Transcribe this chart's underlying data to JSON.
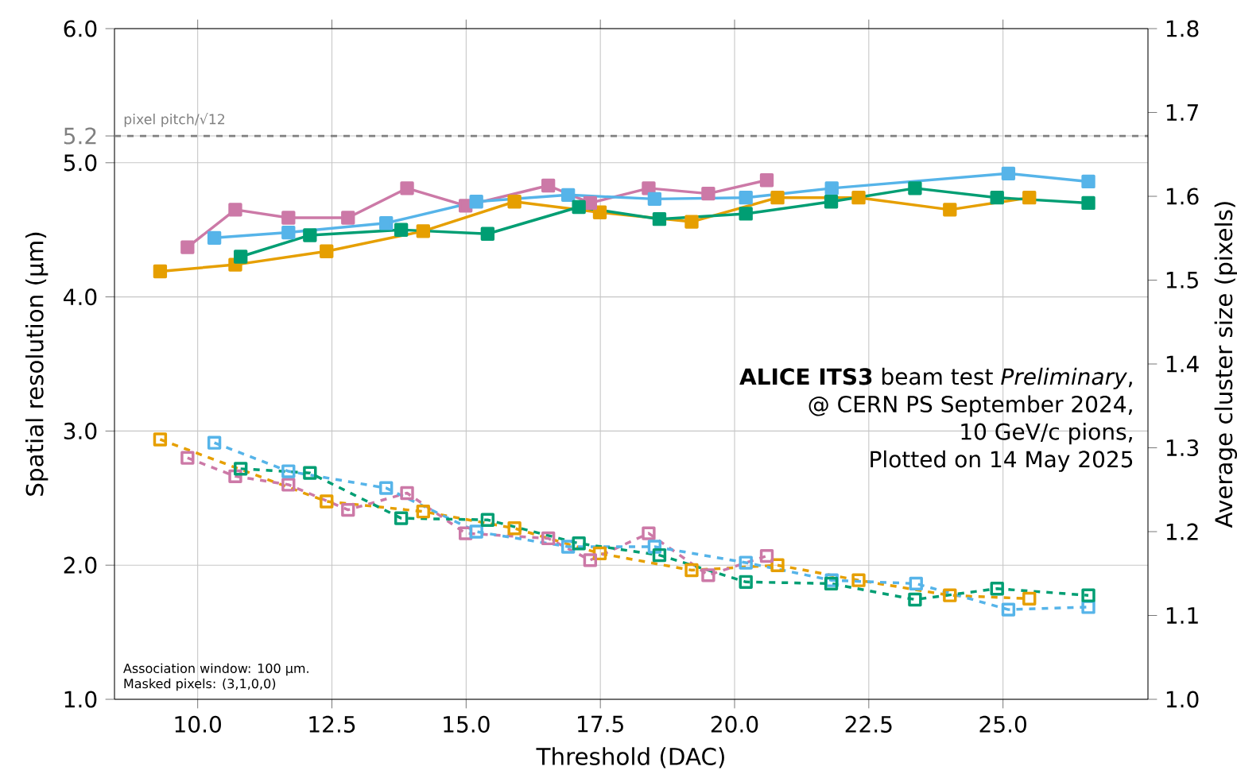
{
  "chart_data": {
    "type": "line",
    "xlabel": "Threshold (DAC)",
    "ylabel": "Spatial resolution (µm)",
    "y2label": "Average cluster size (pixels)",
    "xlim": [
      8.45,
      27.7
    ],
    "ylim": [
      1.0,
      6.0
    ],
    "y2lim": [
      1.0,
      1.8
    ],
    "xticks": [
      {
        "value": 10,
        "label": "10.0"
      },
      {
        "value": 12.5,
        "label": "12.5"
      },
      {
        "value": 15,
        "label": "15.0"
      },
      {
        "value": 17.5,
        "label": "17.5"
      },
      {
        "value": 20,
        "label": "20.0"
      },
      {
        "value": 22.5,
        "label": "22.5"
      },
      {
        "value": 25,
        "label": "25.0"
      }
    ],
    "yticks": [
      {
        "value": 1,
        "label": "1.0"
      },
      {
        "value": 2,
        "label": "2.0"
      },
      {
        "value": 3,
        "label": "3.0"
      },
      {
        "value": 4,
        "label": "4.0"
      },
      {
        "value": 5,
        "label": "5.0"
      },
      {
        "value": 5.2,
        "label": "5.2"
      },
      {
        "value": 6,
        "label": "6.0"
      }
    ],
    "y2ticks": [
      {
        "value": 1.0,
        "label": "1.0"
      },
      {
        "value": 1.1,
        "label": "1.1"
      },
      {
        "value": 1.2,
        "label": "1.2"
      },
      {
        "value": 1.3,
        "label": "1.3"
      },
      {
        "value": 1.4,
        "label": "1.4"
      },
      {
        "value": 1.5,
        "label": "1.5"
      },
      {
        "value": 1.6,
        "label": "1.6"
      },
      {
        "value": 1.7,
        "label": "1.7"
      },
      {
        "value": 1.8,
        "label": "1.8"
      }
    ],
    "grid": true,
    "marker": "square",
    "ref_lines": [
      {
        "axis": "y",
        "value": 5.2,
        "label": "pixel pitch/√12",
        "color": "#808080",
        "line_style": "dashed"
      }
    ],
    "annotations": [
      "**ALICE ITS3** beam test *Preliminary*,",
      "@ CERN PS September 2024,",
      "10 GeV/c pions,",
      "Plotted on 14 May 2025",
      "Association window: 100 µm.",
      "Masked pixels: (3,1,0,0)"
    ],
    "series": [
      {
        "color": "#E69F00",
        "line_style": "solid",
        "x": [
          9.3,
          10.7,
          12.4,
          14.2,
          15.9,
          17.49,
          19.2,
          20.8,
          22.31,
          24.01,
          25.49
        ],
        "values": [
          4.19,
          4.24,
          4.34,
          4.49,
          4.71,
          4.63,
          4.56,
          4.74,
          4.74,
          4.65,
          4.74
        ]
      },
      {
        "color": "#CC79A7",
        "line_style": "solid",
        "x": [
          9.81,
          10.7,
          11.69,
          12.8,
          13.9,
          14.99,
          16.53,
          17.31,
          18.4,
          19.51,
          20.6
        ],
        "values": [
          4.37,
          4.65,
          4.59,
          4.59,
          4.81,
          4.68,
          4.83,
          4.7,
          4.81,
          4.77,
          4.87
        ]
      },
      {
        "color": "#56B4E9",
        "line_style": "solid",
        "x": [
          10.31,
          11.69,
          13.51,
          15.19,
          16.9,
          18.51,
          20.21,
          21.81,
          23.38,
          25.1,
          26.59
        ],
        "values": [
          4.44,
          4.48,
          4.55,
          4.71,
          4.76,
          4.73,
          4.74,
          4.81,
          null,
          4.92,
          4.86
        ]
      },
      {
        "color": "#009E73",
        "line_style": "solid",
        "x": [
          10.8,
          12.09,
          13.79,
          15.4,
          17.1,
          18.6,
          20.21,
          21.8,
          23.36,
          24.89,
          26.59
        ],
        "values": [
          4.3,
          4.46,
          4.5,
          4.47,
          4.67,
          4.58,
          4.62,
          4.71,
          4.81,
          4.74,
          4.7
        ]
      },
      {
        "color": "#E69F00",
        "line_style": "dashed",
        "axis": "y2",
        "x": [
          9.3,
          10.7,
          12.4,
          14.2,
          15.9,
          17.49,
          19.2,
          20.8,
          22.31,
          24.01,
          25.49
        ],
        "values": [
          1.31,
          null,
          1.236,
          1.224,
          1.204,
          1.174,
          1.154,
          1.16,
          1.142,
          1.124,
          1.12
        ]
      },
      {
        "color": "#CC79A7",
        "line_style": "dashed",
        "axis": "y2",
        "x": [
          9.81,
          10.7,
          11.69,
          12.8,
          13.9,
          14.99,
          16.53,
          17.31,
          18.4,
          19.51,
          20.6
        ],
        "values": [
          1.288,
          1.266,
          1.256,
          1.226,
          1.246,
          1.198,
          1.192,
          1.166,
          1.198,
          1.148,
          1.171
        ]
      },
      {
        "color": "#56B4E9",
        "line_style": "dashed",
        "axis": "y2",
        "x": [
          10.31,
          11.69,
          13.51,
          15.19,
          16.9,
          18.51,
          20.21,
          21.81,
          23.38,
          25.1,
          26.59
        ],
        "values": [
          1.306,
          1.272,
          1.252,
          1.2,
          1.182,
          1.182,
          1.163,
          1.142,
          1.138,
          1.107,
          1.11
        ]
      },
      {
        "color": "#009E73",
        "line_style": "dashed",
        "axis": "y2",
        "x": [
          10.8,
          12.09,
          13.79,
          15.4,
          17.1,
          18.6,
          20.21,
          21.8,
          23.36,
          24.89,
          26.59
        ],
        "values": [
          1.275,
          1.27,
          1.216,
          1.214,
          1.186,
          1.172,
          1.14,
          1.138,
          1.119,
          1.132,
          1.124
        ]
      }
    ]
  }
}
